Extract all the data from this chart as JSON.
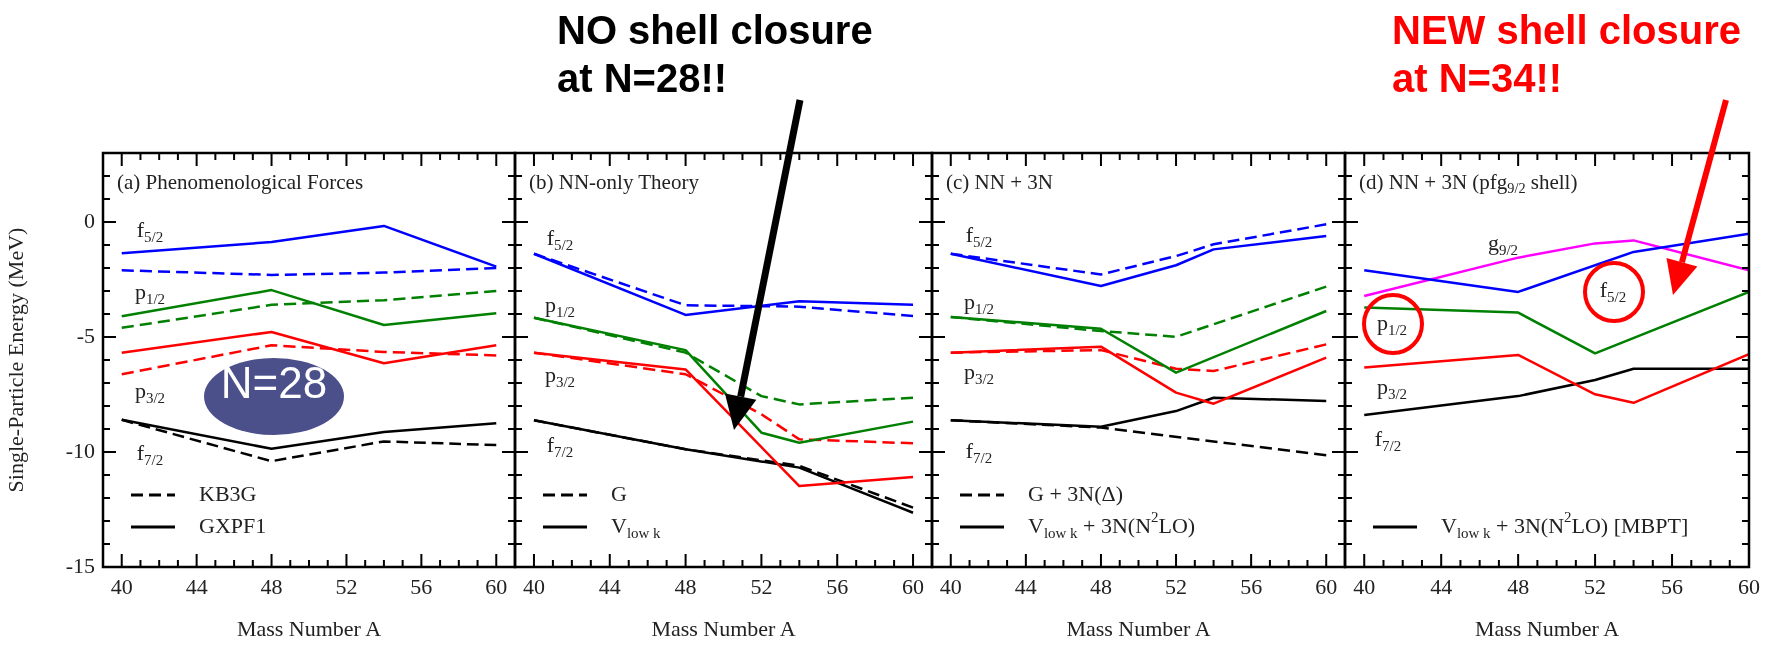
{
  "chart_data": [
    {
      "type": "line",
      "title": "(a) Phenomenological Forces",
      "xlabel": "Mass Number A",
      "ylabel": "Single-Particle Energy (MeV)",
      "xlim": [
        39,
        61
      ],
      "ylim": [
        -15,
        3
      ],
      "xticks": [
        40,
        {
          "value": 41,
          "label": null
        },
        {
          "value": 42,
          "label": null
        },
        {
          "value": 43,
          "label": null
        },
        44,
        {
          "value": 45,
          "label": null
        },
        {
          "value": 46,
          "label": null
        },
        {
          "value": 47,
          "label": null
        },
        48,
        {
          "value": 49,
          "label": null
        },
        {
          "value": 50,
          "label": null
        },
        {
          "value": 51,
          "label": null
        },
        52,
        {
          "value": 53,
          "label": null
        },
        {
          "value": 54,
          "label": null
        },
        {
          "value": 55,
          "label": null
        },
        56,
        {
          "value": 57,
          "label": null
        },
        {
          "value": 58,
          "label": null
        },
        {
          "value": 59,
          "label": null
        },
        60
      ],
      "yticks": [
        -15,
        {
          "value": -14,
          "label": null
        },
        {
          "value": -13,
          "label": null
        },
        {
          "value": -12,
          "label": null
        },
        {
          "value": -11,
          "label": null
        },
        -10,
        {
          "value": -9,
          "label": null
        },
        {
          "value": -8,
          "label": null
        },
        {
          "value": -7,
          "label": null
        },
        {
          "value": -6,
          "label": null
        },
        -5,
        {
          "value": -4,
          "label": null
        },
        {
          "value": -3,
          "label": null
        },
        {
          "value": -2,
          "label": null
        },
        {
          "value": -1,
          "label": null
        },
        0,
        {
          "value": 1,
          "label": null
        },
        {
          "value": 2,
          "label": null
        }
      ],
      "legend": "bottom left",
      "annotations": [
        "N=28",
        "f$_{5/2}$",
        "p$_{1/2}$",
        "p$_{3/2}$",
        "f$_{7/2}$"
      ],
      "series": [
        {
          "color": "#0000ff",
          "line_style": "solid",
          "x": [
            40,
            48,
            54,
            60
          ],
          "values": [
            -1.36,
            -0.87,
            -0.17,
            -1.94
          ]
        },
        {
          "color": "#0000ff",
          "line_style": "dashed",
          "x": [
            40,
            48,
            54,
            60
          ],
          "values": [
            -2.1,
            -2.3,
            -2.2,
            -2.0
          ]
        },
        {
          "color": "#008000",
          "line_style": "solid",
          "x": [
            40,
            48,
            54,
            60
          ],
          "values": [
            -4.1,
            -2.96,
            -4.48,
            -3.97
          ]
        },
        {
          "color": "#008000",
          "line_style": "dashed",
          "x": [
            40,
            48,
            54,
            60
          ],
          "values": [
            -4.6,
            -3.6,
            -3.4,
            -3.0
          ]
        },
        {
          "color": "#ff0000",
          "line_style": "solid",
          "x": [
            40,
            48,
            54,
            60
          ],
          "values": [
            -5.68,
            -4.78,
            -6.14,
            -5.36
          ]
        },
        {
          "color": "#ff0000",
          "line_style": "dashed",
          "x": [
            40,
            48,
            54,
            60
          ],
          "values": [
            -6.62,
            -5.36,
            -5.65,
            -5.8
          ]
        },
        {
          "name": "KB3G",
          "color": "#000000",
          "line_style": "dashed",
          "x": [
            40,
            48,
            54,
            60
          ],
          "values": [
            -8.6,
            -10.4,
            -9.54,
            -9.7
          ]
        },
        {
          "name": "GXPF1",
          "color": "#000000",
          "line_style": "solid",
          "x": [
            40,
            48,
            54,
            60
          ],
          "values": [
            -8.6,
            -9.86,
            -9.13,
            -8.75
          ]
        }
      ]
    },
    {
      "type": "line",
      "title": "(b) NN-only Theory",
      "xlabel": "Mass Number A",
      "xlim": [
        39,
        61
      ],
      "ylim": [
        -15,
        3
      ],
      "tick_labels": "x",
      "xticks": [
        40,
        {
          "value": 41,
          "label": null
        },
        {
          "value": 42,
          "label": null
        },
        {
          "value": 43,
          "label": null
        },
        44,
        {
          "value": 45,
          "label": null
        },
        {
          "value": 46,
          "label": null
        },
        {
          "value": 47,
          "label": null
        },
        48,
        {
          "value": 49,
          "label": null
        },
        {
          "value": 50,
          "label": null
        },
        {
          "value": 51,
          "label": null
        },
        52,
        {
          "value": 53,
          "label": null
        },
        {
          "value": 54,
          "label": null
        },
        {
          "value": 55,
          "label": null
        },
        56,
        {
          "value": 57,
          "label": null
        },
        {
          "value": 58,
          "label": null
        },
        {
          "value": 59,
          "label": null
        },
        60
      ],
      "yticks": [
        -15,
        {
          "value": -14,
          "label": null
        },
        {
          "value": -13,
          "label": null
        },
        {
          "value": -12,
          "label": null
        },
        {
          "value": -11,
          "label": null
        },
        -10,
        {
          "value": -9,
          "label": null
        },
        {
          "value": -8,
          "label": null
        },
        {
          "value": -7,
          "label": null
        },
        {
          "value": -6,
          "label": null
        },
        -5,
        {
          "value": -4,
          "label": null
        },
        {
          "value": -3,
          "label": null
        },
        {
          "value": -2,
          "label": null
        },
        {
          "value": -1,
          "label": null
        },
        0,
        {
          "value": 1,
          "label": null
        },
        {
          "value": 2,
          "label": null
        }
      ],
      "legend": "bottom left",
      "annotations": [
        "NO shell closure at N=28!!",
        "f$_{5/2}$",
        "p$_{1/2}$",
        "p$_{3/2}$",
        "f$_{7/2}$"
      ],
      "series": [
        {
          "color": "#0000ff",
          "line_style": "solid",
          "x": [
            40,
            48,
            54,
            60
          ],
          "values": [
            -1.38,
            -4.04,
            -3.45,
            -3.6
          ]
        },
        {
          "color": "#0000ff",
          "line_style": "dashed",
          "x": [
            40,
            48,
            54,
            60
          ],
          "values": [
            -1.38,
            -3.62,
            -3.68,
            -4.09
          ]
        },
        {
          "color": "#008000",
          "line_style": "solid",
          "x": [
            40,
            48,
            52,
            54,
            60
          ],
          "values": [
            -4.16,
            -5.57,
            -9.16,
            -9.6,
            -8.68
          ]
        },
        {
          "color": "#008000",
          "line_style": "dashed",
          "x": [
            40,
            48,
            52,
            54,
            60
          ],
          "values": [
            -4.16,
            -5.68,
            -7.57,
            -7.93,
            -7.64
          ]
        },
        {
          "color": "#ff0000",
          "line_style": "solid",
          "x": [
            40,
            48,
            54,
            60
          ],
          "values": [
            -5.68,
            -6.41,
            -11.48,
            -11.09
          ]
        },
        {
          "color": "#ff0000",
          "line_style": "dashed",
          "x": [
            40,
            48,
            52,
            54,
            60
          ],
          "values": [
            -5.68,
            -6.62,
            -8.36,
            -9.45,
            -9.62
          ]
        },
        {
          "name": "G",
          "color": "#000000",
          "line_style": "dashed",
          "x": [
            40,
            48,
            54,
            60
          ],
          "values": [
            -8.62,
            -9.88,
            -10.6,
            -12.42
          ]
        },
        {
          "name": "V$_{low k}$",
          "color": "#000000",
          "line_style": "solid",
          "x": [
            40,
            48,
            54,
            60
          ],
          "values": [
            -8.62,
            -9.88,
            -10.68,
            -12.64
          ]
        }
      ]
    },
    {
      "type": "line",
      "title": "(c) NN + 3N",
      "xlabel": "Mass Number A",
      "xlim": [
        39,
        61
      ],
      "ylim": [
        -15,
        3
      ],
      "tick_labels": "x",
      "xticks": [
        40,
        {
          "value": 41,
          "label": null
        },
        {
          "value": 42,
          "label": null
        },
        {
          "value": 43,
          "label": null
        },
        44,
        {
          "value": 45,
          "label": null
        },
        {
          "value": 46,
          "label": null
        },
        {
          "value": 47,
          "label": null
        },
        48,
        {
          "value": 49,
          "label": null
        },
        {
          "value": 50,
          "label": null
        },
        {
          "value": 51,
          "label": null
        },
        52,
        {
          "value": 53,
          "label": null
        },
        {
          "value": 54,
          "label": null
        },
        {
          "value": 55,
          "label": null
        },
        56,
        {
          "value": 57,
          "label": null
        },
        {
          "value": 58,
          "label": null
        },
        {
          "value": 59,
          "label": null
        },
        60
      ],
      "yticks": [
        -15,
        {
          "value": -14,
          "label": null
        },
        {
          "value": -13,
          "label": null
        },
        {
          "value": -12,
          "label": null
        },
        {
          "value": -11,
          "label": null
        },
        -10,
        {
          "value": -9,
          "label": null
        },
        {
          "value": -8,
          "label": null
        },
        {
          "value": -7,
          "label": null
        },
        {
          "value": -6,
          "label": null
        },
        -5,
        {
          "value": -4,
          "label": null
        },
        {
          "value": -3,
          "label": null
        },
        {
          "value": -2,
          "label": null
        },
        {
          "value": -1,
          "label": null
        },
        0,
        {
          "value": 1,
          "label": null
        },
        {
          "value": 2,
          "label": null
        }
      ],
      "legend": "bottom left",
      "annotations": [
        "f$_{5/2}$",
        "p$_{1/2}$",
        "p$_{3/2}$",
        "f$_{7/2}$"
      ],
      "series": [
        {
          "color": "#0000ff",
          "line_style": "solid",
          "x": [
            40,
            48,
            52,
            54,
            60
          ],
          "values": [
            -1.38,
            -2.78,
            -1.88,
            -1.19,
            -0.61
          ]
        },
        {
          "color": "#0000ff",
          "line_style": "dashed",
          "x": [
            40,
            48,
            52,
            54,
            60
          ],
          "values": [
            -1.38,
            -2.28,
            -1.48,
            -0.97,
            -0.1
          ]
        },
        {
          "color": "#008000",
          "line_style": "solid",
          "x": [
            40,
            48,
            52,
            60
          ],
          "values": [
            -4.13,
            -4.64,
            -6.55,
            -3.87
          ]
        },
        {
          "color": "#008000",
          "line_style": "dashed",
          "x": [
            40,
            48,
            52,
            60
          ],
          "values": [
            -4.13,
            -4.74,
            -4.99,
            -2.81
          ]
        },
        {
          "color": "#ff0000",
          "line_style": "solid",
          "x": [
            40,
            48,
            52,
            54,
            60
          ],
          "values": [
            -5.68,
            -5.42,
            -7.42,
            -7.9,
            -5.9
          ]
        },
        {
          "color": "#ff0000",
          "line_style": "dashed",
          "x": [
            40,
            48,
            52,
            54,
            60
          ],
          "values": [
            -5.68,
            -5.57,
            -6.38,
            -6.48,
            -5.32
          ]
        },
        {
          "name": "G + 3N(Δ)",
          "color": "#000000",
          "line_style": "dashed",
          "x": [
            40,
            48,
            60
          ],
          "values": [
            -8.62,
            -8.94,
            -10.14
          ]
        },
        {
          "name": "V$_{low k}$ + 3N(N$^{2}$LO)",
          "color": "#000000",
          "line_style": "solid",
          "x": [
            40,
            48,
            52,
            54,
            60
          ],
          "values": [
            -8.62,
            -8.9,
            -8.22,
            -7.64,
            -7.78
          ]
        }
      ]
    },
    {
      "type": "line",
      "title": "(d) NN + 3N (pfg$_{9/2}$ shell)",
      "xlabel": "Mass Number A",
      "xlim": [
        39,
        60
      ],
      "ylim": [
        -15,
        3
      ],
      "tick_labels": "x",
      "xticks": [
        40,
        {
          "value": 41,
          "label": null
        },
        {
          "value": 42,
          "label": null
        },
        {
          "value": 43,
          "label": null
        },
        44,
        {
          "value": 45,
          "label": null
        },
        {
          "value": 46,
          "label": null
        },
        {
          "value": 47,
          "label": null
        },
        48,
        {
          "value": 49,
          "label": null
        },
        {
          "value": 50,
          "label": null
        },
        {
          "value": 51,
          "label": null
        },
        52,
        {
          "value": 53,
          "label": null
        },
        {
          "value": 54,
          "label": null
        },
        {
          "value": 55,
          "label": null
        },
        56,
        {
          "value": 57,
          "label": null
        },
        {
          "value": 58,
          "label": null
        },
        {
          "value": 59,
          "label": null
        },
        60
      ],
      "yticks": [
        -15,
        {
          "value": -14,
          "label": null
        },
        {
          "value": -13,
          "label": null
        },
        {
          "value": -12,
          "label": null
        },
        {
          "value": -11,
          "label": null
        },
        -10,
        {
          "value": -9,
          "label": null
        },
        {
          "value": -8,
          "label": null
        },
        {
          "value": -7,
          "label": null
        },
        {
          "value": -6,
          "label": null
        },
        -5,
        {
          "value": -4,
          "label": null
        },
        {
          "value": -3,
          "label": null
        },
        {
          "value": -2,
          "label": null
        },
        {
          "value": -1,
          "label": null
        },
        0,
        {
          "value": 1,
          "label": null
        },
        {
          "value": 2,
          "label": null
        }
      ],
      "legend": "bottom left",
      "annotations": [
        "NEW shell closure at N=34!!",
        "g$_{9/2}$",
        "f$_{5/2}$",
        "p$_{1/2}$",
        "p$_{3/2}$",
        "f$_{7/2}$"
      ],
      "series": [
        {
          "color": "#0000ff",
          "line_style": "solid",
          "x": [
            40,
            48,
            54,
            60
          ],
          "values": [
            -2.1,
            -3.04,
            -1.3,
            -0.51
          ]
        },
        {
          "color": "#ff00ff",
          "line_style": "solid",
          "x": [
            40,
            48,
            52,
            54,
            60
          ],
          "values": [
            -3.22,
            -1.55,
            -0.93,
            -0.8,
            -2.1
          ]
        },
        {
          "color": "#008000",
          "line_style": "solid",
          "x": [
            40,
            48,
            52,
            60
          ],
          "values": [
            -3.72,
            -3.94,
            -5.71,
            -3.04
          ]
        },
        {
          "color": "#ff0000",
          "line_style": "solid",
          "x": [
            40,
            48,
            52,
            54,
            60
          ],
          "values": [
            -6.33,
            -5.78,
            -7.49,
            -7.86,
            -5.75
          ]
        },
        {
          "name": "V$_{low k}$ + 3N(N$^{2}$LO) [MBPT]",
          "color": "#000000",
          "line_style": "solid",
          "x": [
            40,
            48,
            52,
            54,
            60
          ],
          "values": [
            -8.39,
            -7.57,
            -6.87,
            -6.38,
            -6.38
          ]
        }
      ]
    }
  ]
}
